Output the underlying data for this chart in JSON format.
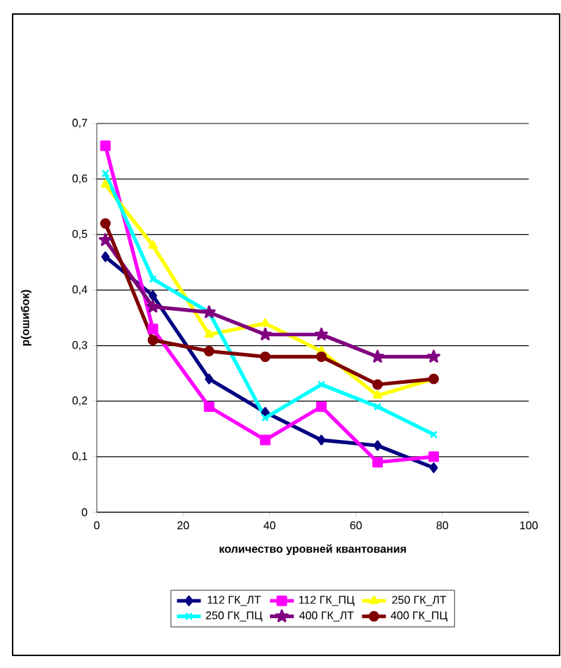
{
  "chart_data": {
    "type": "line",
    "xlabel": "количество уровней квантования",
    "ylabel": "p(ошибок)",
    "x": [
      2,
      13,
      26,
      39,
      52,
      65,
      78
    ],
    "xlim": [
      0,
      100
    ],
    "xticks": [
      0,
      20,
      40,
      60,
      80,
      100
    ],
    "ylim": [
      0,
      0.7
    ],
    "yticks": [
      {
        "value": 0,
        "label": "0"
      },
      {
        "value": 0.1,
        "label": "0,1"
      },
      {
        "value": 0.2,
        "label": "0,2"
      },
      {
        "value": 0.3,
        "label": "0,3"
      },
      {
        "value": 0.4,
        "label": "0,4"
      },
      {
        "value": 0.5,
        "label": "0,5"
      },
      {
        "value": 0.6,
        "label": "0,6"
      },
      {
        "value": 0.7,
        "label": "0,7"
      }
    ],
    "grid": "y",
    "legend": "bottom",
    "series": [
      {
        "name": "112 ГК_ЛТ",
        "color": "#000080",
        "marker": "diamond",
        "values": [
          0.46,
          0.39,
          0.24,
          0.18,
          0.13,
          0.12,
          0.08
        ]
      },
      {
        "name": "112 ГК_ПЦ",
        "color": "#ff00ff",
        "marker": "square",
        "values": [
          0.66,
          0.33,
          0.19,
          0.13,
          0.19,
          0.09,
          0.1
        ]
      },
      {
        "name": "250 ГК_ЛТ",
        "color": "#ffff00",
        "marker": "triangle",
        "values": [
          0.59,
          0.48,
          0.32,
          0.34,
          0.29,
          0.21,
          0.24
        ]
      },
      {
        "name": "250 ГК_ПЦ",
        "color": "#00ffff",
        "marker": "cross",
        "values": [
          0.61,
          0.42,
          0.36,
          0.17,
          0.23,
          0.19,
          0.14
        ]
      },
      {
        "name": "400 ГК_ЛТ",
        "color": "#800080",
        "marker": "star",
        "values": [
          0.49,
          0.37,
          0.36,
          0.32,
          0.32,
          0.28,
          0.28
        ]
      },
      {
        "name": "400 ГК_ПЦ",
        "color": "#800000",
        "marker": "circle",
        "values": [
          0.52,
          0.31,
          0.29,
          0.28,
          0.28,
          0.23,
          0.24
        ]
      }
    ]
  }
}
